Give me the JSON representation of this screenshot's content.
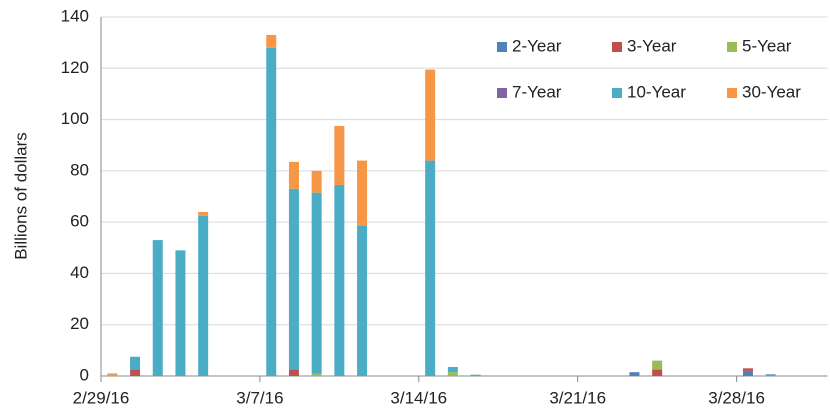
{
  "chart_data": {
    "type": "stacked_bar",
    "y_label": "Billions of dollars",
    "categories": [
      "2/29/16",
      null,
      null,
      null,
      null,
      null,
      null,
      "3/7/16",
      null,
      null,
      null,
      null,
      null,
      null,
      "3/14/16",
      null,
      null,
      null,
      null,
      null,
      null,
      "3/21/16",
      null,
      null,
      null,
      null,
      null,
      null,
      "3/28/16",
      null,
      null,
      null
    ],
    "series": [
      {
        "name": "2-Year",
        "color": "#4f81bd",
        "values": [
          0,
          0,
          0,
          0,
          0,
          0,
          0,
          0,
          0,
          0,
          0,
          0,
          0,
          0,
          0,
          0,
          0,
          0,
          0,
          0,
          0,
          0,
          0,
          1.5,
          0,
          0,
          0,
          0,
          2,
          0,
          0,
          0
        ]
      },
      {
        "name": "3-Year",
        "color": "#c0504d",
        "values": [
          0,
          2.5,
          0,
          0,
          0,
          0,
          0,
          0,
          2.5,
          0,
          0,
          0,
          0,
          0,
          0,
          0,
          0,
          0,
          0,
          0,
          0,
          0,
          0,
          0,
          2.5,
          0,
          0,
          0,
          1,
          0,
          0,
          0
        ]
      },
      {
        "name": "5-Year",
        "color": "#9bbb59",
        "values": [
          0,
          0,
          0,
          0,
          0,
          0,
          0,
          0,
          0,
          1,
          0,
          0,
          0,
          0,
          0,
          1.5,
          0,
          0,
          0,
          0,
          0,
          0,
          0,
          0,
          3.5,
          0,
          0,
          0,
          0,
          0,
          0,
          0
        ]
      },
      {
        "name": "7-Year",
        "color": "#8064a2",
        "values": [
          0,
          0,
          0,
          0,
          0,
          0,
          0,
          0,
          0,
          0,
          0,
          0,
          0,
          0,
          0,
          0,
          0,
          0,
          0,
          0,
          0,
          0,
          0,
          0,
          0,
          0,
          0,
          0,
          0,
          0,
          0,
          0
        ]
      },
      {
        "name": "10-Year",
        "color": "#4bacc6",
        "values": [
          0,
          5,
          53,
          49,
          62.5,
          0,
          0,
          128,
          70.5,
          70.5,
          74.5,
          58.5,
          0,
          0,
          84,
          2,
          0.5,
          0,
          0,
          0,
          0,
          0,
          0,
          0,
          0,
          0,
          0,
          0,
          0,
          0.7,
          0,
          0
        ]
      },
      {
        "name": "30-Year",
        "color": "#f79646",
        "values": [
          1,
          0,
          0,
          0,
          1.5,
          0,
          0,
          5,
          10.5,
          8.5,
          23,
          25.5,
          0,
          0,
          35.5,
          0,
          0,
          0,
          0,
          0,
          0,
          0,
          0,
          0,
          0,
          0,
          0,
          0,
          0,
          0,
          0,
          0
        ]
      }
    ],
    "ylim": [
      0,
      140
    ],
    "yticks": [
      0,
      20,
      40,
      60,
      80,
      100,
      120,
      140
    ],
    "grid": true,
    "legend": "upper right"
  }
}
